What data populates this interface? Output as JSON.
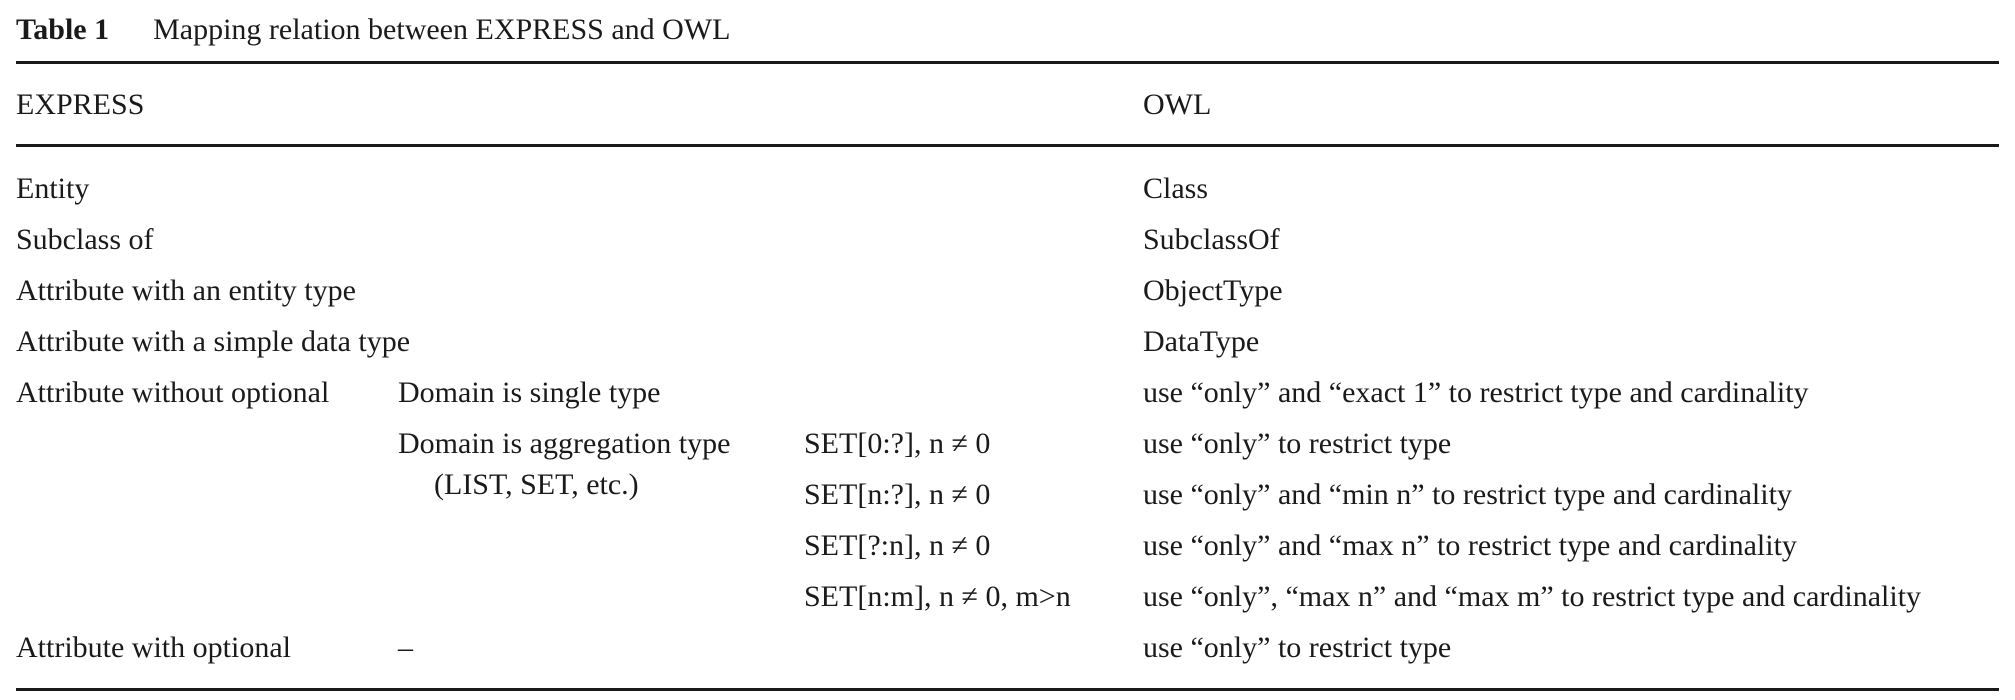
{
  "caption": {
    "label": "Table 1",
    "title": "Mapping relation between EXPRESS and OWL"
  },
  "header": {
    "express": "EXPRESS",
    "owl": "OWL"
  },
  "rows": [
    {
      "express": "Entity",
      "owl": "Class"
    },
    {
      "express": "Subclass of",
      "owl": "SubclassOf"
    },
    {
      "express": "Attribute with an entity type",
      "owl": "ObjectType"
    },
    {
      "express": "Attribute with a simple data type",
      "owl": "DataType"
    },
    {
      "express": "Attribute without optional",
      "domain": "Domain is single type",
      "owl": "use “only” and “exact 1” to restrict type and cardinality"
    },
    {
      "domain": "Domain is aggregation type",
      "domain_note": "(LIST, SET, etc.)",
      "set": "SET[0:?], n ≠ 0",
      "owl": "use “only” to restrict type"
    },
    {
      "set": "SET[n:?], n ≠ 0",
      "owl": "use “only” and “min n” to restrict type and cardinality"
    },
    {
      "set": "SET[?:n], n ≠ 0",
      "owl": "use “only” and “max n” to restrict type and cardinality"
    },
    {
      "set": "SET[n:m], n ≠ 0, m>n",
      "owl": "use “only”, “max n” and “max m” to restrict type and cardinality"
    },
    {
      "express": "Attribute with optional",
      "domain": "–",
      "owl": "use “only” to restrict type"
    }
  ]
}
